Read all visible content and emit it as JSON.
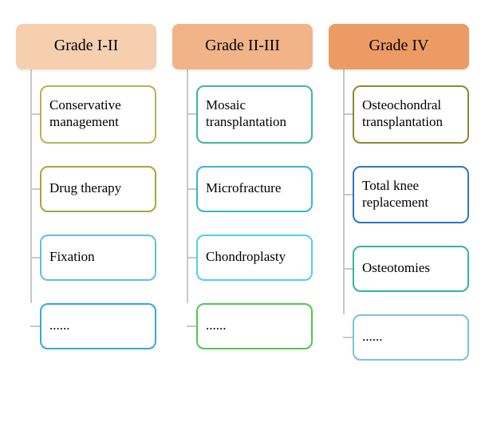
{
  "diagram": {
    "type": "tree",
    "background_color": "#ffffff",
    "connector_color": "#c8c8c8",
    "title_fontsize": 20,
    "item_fontsize": 17,
    "font_family": "Times New Roman",
    "border_radius": 10,
    "columns": [
      {
        "header": "Grade I-II",
        "header_bg": "#f6cfaf",
        "items": [
          {
            "label": "Conservative management",
            "border_color": "#b6b450"
          },
          {
            "label": "Drug therapy",
            "border_color": "#a6a63b"
          },
          {
            "label": "Fixation",
            "border_color": "#5fc2da"
          },
          {
            "label": "......",
            "border_color": "#36a8e0"
          }
        ]
      },
      {
        "header": "Grade II-III",
        "header_bg": "#f1b488",
        "items": [
          {
            "label": "Mosaic transplantation",
            "border_color": "#3fb7a0"
          },
          {
            "label": "Microfracture",
            "border_color": "#37b6d6"
          },
          {
            "label": "Chondroplasty",
            "border_color": "#4fd0f0"
          },
          {
            "label": "......",
            "border_color": "#4fc94f"
          }
        ]
      },
      {
        "header": "Grade IV",
        "header_bg": "#ec9b64",
        "items": [
          {
            "label": "Osteochondral transplantation",
            "border_color": "#8a8a34"
          },
          {
            "label": "Total knee replacement",
            "border_color": "#2f74c6"
          },
          {
            "label": "Osteotomies",
            "border_color": "#36b3a0"
          },
          {
            "label": "......",
            "border_color": "#7ec1d6"
          }
        ]
      }
    ]
  }
}
